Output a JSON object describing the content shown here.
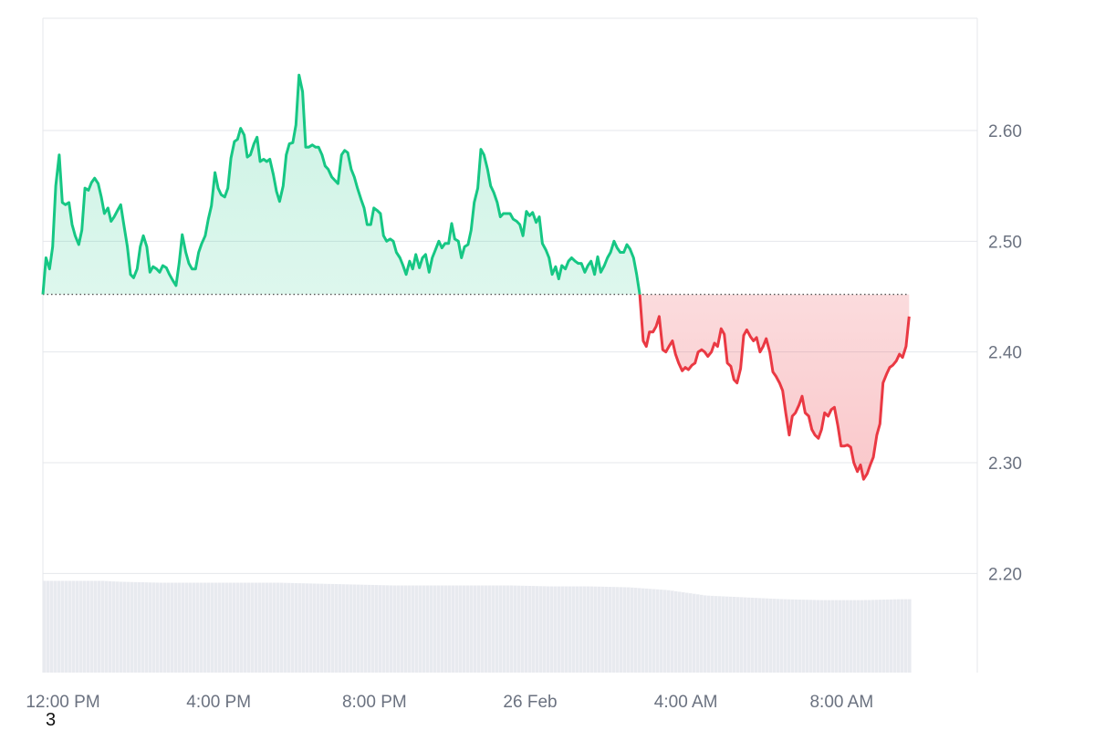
{
  "chart_data": {
    "type": "area",
    "y_axis_position": "right",
    "ylim": [
      2.1,
      2.7
    ],
    "yticks": [
      "2.60",
      "2.50",
      "2.40",
      "2.30",
      "2.20"
    ],
    "xticks": [
      "12:00 PM",
      "4:00 PM",
      "8:00 PM",
      "26 Feb",
      "4:00 AM",
      "8:00 AM"
    ],
    "x_range_hours": [
      0,
      24
    ],
    "xtick_hours": [
      0,
      4,
      8,
      12,
      16,
      20
    ],
    "baseline": 2.452,
    "grid": true,
    "colors": {
      "up": "#16c784",
      "down": "#ea3943",
      "grid": "#e5e7eb",
      "volume": "#e8eaef"
    },
    "series": [
      {
        "values": [
          [
            0.0,
            2.452
          ],
          [
            0.08,
            2.485
          ],
          [
            0.17,
            2.475
          ],
          [
            0.25,
            2.495
          ],
          [
            0.33,
            2.55
          ],
          [
            0.42,
            2.578
          ],
          [
            0.5,
            2.535
          ],
          [
            0.58,
            2.533
          ],
          [
            0.67,
            2.535
          ],
          [
            0.75,
            2.515
          ],
          [
            0.83,
            2.505
          ],
          [
            0.92,
            2.497
          ],
          [
            1.0,
            2.51
          ],
          [
            1.08,
            2.548
          ],
          [
            1.17,
            2.546
          ],
          [
            1.25,
            2.553
          ],
          [
            1.33,
            2.557
          ],
          [
            1.42,
            2.552
          ],
          [
            1.5,
            2.54
          ],
          [
            1.58,
            2.525
          ],
          [
            1.67,
            2.53
          ],
          [
            1.75,
            2.518
          ],
          [
            1.83,
            2.522
          ],
          [
            1.92,
            2.528
          ],
          [
            2.0,
            2.533
          ],
          [
            2.08,
            2.515
          ],
          [
            2.17,
            2.495
          ],
          [
            2.25,
            2.47
          ],
          [
            2.33,
            2.467
          ],
          [
            2.42,
            2.475
          ],
          [
            2.5,
            2.495
          ],
          [
            2.58,
            2.505
          ],
          [
            2.67,
            2.495
          ],
          [
            2.75,
            2.472
          ],
          [
            2.83,
            2.477
          ],
          [
            2.92,
            2.475
          ],
          [
            3.0,
            2.472
          ],
          [
            3.08,
            2.478
          ],
          [
            3.17,
            2.476
          ],
          [
            3.25,
            2.47
          ],
          [
            3.33,
            2.465
          ],
          [
            3.42,
            2.46
          ],
          [
            3.5,
            2.48
          ],
          [
            3.58,
            2.506
          ],
          [
            3.67,
            2.49
          ],
          [
            3.75,
            2.48
          ],
          [
            3.83,
            2.475
          ],
          [
            3.92,
            2.475
          ],
          [
            4.0,
            2.49
          ],
          [
            4.08,
            2.498
          ],
          [
            4.17,
            2.505
          ],
          [
            4.25,
            2.52
          ],
          [
            4.33,
            2.532
          ],
          [
            4.42,
            2.562
          ],
          [
            4.5,
            2.548
          ],
          [
            4.58,
            2.542
          ],
          [
            4.67,
            2.54
          ],
          [
            4.75,
            2.548
          ],
          [
            4.83,
            2.575
          ],
          [
            4.92,
            2.59
          ],
          [
            5.0,
            2.592
          ],
          [
            5.08,
            2.602
          ],
          [
            5.17,
            2.596
          ],
          [
            5.25,
            2.576
          ],
          [
            5.33,
            2.578
          ],
          [
            5.42,
            2.588
          ],
          [
            5.5,
            2.594
          ],
          [
            5.58,
            2.572
          ],
          [
            5.67,
            2.574
          ],
          [
            5.75,
            2.572
          ],
          [
            5.83,
            2.574
          ],
          [
            5.92,
            2.56
          ],
          [
            6.0,
            2.545
          ],
          [
            6.08,
            2.536
          ],
          [
            6.17,
            2.55
          ],
          [
            6.25,
            2.578
          ],
          [
            6.33,
            2.588
          ],
          [
            6.42,
            2.589
          ],
          [
            6.5,
            2.605
          ],
          [
            6.58,
            2.65
          ],
          [
            6.67,
            2.635
          ],
          [
            6.75,
            2.585
          ],
          [
            6.83,
            2.585
          ],
          [
            6.92,
            2.587
          ],
          [
            7.0,
            2.585
          ],
          [
            7.08,
            2.585
          ],
          [
            7.17,
            2.578
          ],
          [
            7.25,
            2.568
          ],
          [
            7.33,
            2.565
          ],
          [
            7.42,
            2.558
          ],
          [
            7.5,
            2.555
          ],
          [
            7.58,
            2.552
          ],
          [
            7.67,
            2.578
          ],
          [
            7.75,
            2.582
          ],
          [
            7.83,
            2.58
          ],
          [
            7.92,
            2.565
          ],
          [
            8.0,
            2.558
          ],
          [
            8.08,
            2.548
          ],
          [
            8.17,
            2.538
          ],
          [
            8.25,
            2.53
          ],
          [
            8.33,
            2.515
          ],
          [
            8.42,
            2.515
          ],
          [
            8.5,
            2.53
          ],
          [
            8.58,
            2.528
          ],
          [
            8.67,
            2.525
          ],
          [
            8.75,
            2.505
          ],
          [
            8.83,
            2.5
          ],
          [
            8.92,
            2.502
          ],
          [
            9.0,
            2.5
          ],
          [
            9.08,
            2.49
          ],
          [
            9.17,
            2.485
          ],
          [
            9.25,
            2.478
          ],
          [
            9.33,
            2.47
          ],
          [
            9.42,
            2.482
          ],
          [
            9.5,
            2.475
          ],
          [
            9.58,
            2.488
          ],
          [
            9.67,
            2.476
          ],
          [
            9.75,
            2.485
          ],
          [
            9.83,
            2.488
          ],
          [
            9.92,
            2.472
          ],
          [
            10.0,
            2.485
          ],
          [
            10.08,
            2.492
          ],
          [
            10.17,
            2.5
          ],
          [
            10.25,
            2.494
          ],
          [
            10.33,
            2.498
          ],
          [
            10.42,
            2.498
          ],
          [
            10.5,
            2.516
          ],
          [
            10.58,
            2.502
          ],
          [
            10.67,
            2.5
          ],
          [
            10.75,
            2.485
          ],
          [
            10.83,
            2.495
          ],
          [
            10.92,
            2.497
          ],
          [
            11.0,
            2.51
          ],
          [
            11.08,
            2.535
          ],
          [
            11.17,
            2.548
          ],
          [
            11.25,
            2.583
          ],
          [
            11.33,
            2.578
          ],
          [
            11.42,
            2.565
          ],
          [
            11.5,
            2.55
          ],
          [
            11.58,
            2.544
          ],
          [
            11.67,
            2.535
          ],
          [
            11.75,
            2.522
          ],
          [
            11.83,
            2.525
          ],
          [
            11.92,
            2.525
          ],
          [
            12.0,
            2.525
          ],
          [
            12.08,
            2.52
          ],
          [
            12.17,
            2.518
          ],
          [
            12.25,
            2.515
          ],
          [
            12.33,
            2.505
          ],
          [
            12.42,
            2.527
          ],
          [
            12.5,
            2.523
          ],
          [
            12.58,
            2.526
          ],
          [
            12.67,
            2.517
          ],
          [
            12.75,
            2.522
          ],
          [
            12.83,
            2.498
          ],
          [
            12.92,
            2.492
          ],
          [
            13.0,
            2.485
          ],
          [
            13.08,
            2.47
          ],
          [
            13.17,
            2.477
          ],
          [
            13.25,
            2.466
          ],
          [
            13.33,
            2.478
          ],
          [
            13.42,
            2.475
          ],
          [
            13.5,
            2.482
          ],
          [
            13.58,
            2.485
          ],
          [
            13.67,
            2.482
          ],
          [
            13.75,
            2.48
          ],
          [
            13.83,
            2.48
          ],
          [
            13.92,
            2.472
          ],
          [
            14.0,
            2.478
          ],
          [
            14.08,
            2.482
          ],
          [
            14.17,
            2.47
          ],
          [
            14.25,
            2.486
          ],
          [
            14.33,
            2.472
          ],
          [
            14.42,
            2.478
          ],
          [
            14.5,
            2.485
          ],
          [
            14.58,
            2.49
          ],
          [
            14.67,
            2.5
          ],
          [
            14.75,
            2.494
          ],
          [
            14.83,
            2.49
          ],
          [
            14.92,
            2.49
          ],
          [
            15.0,
            2.497
          ],
          [
            15.08,
            2.493
          ],
          [
            15.17,
            2.485
          ],
          [
            15.25,
            2.47
          ],
          [
            15.33,
            2.452
          ],
          [
            15.42,
            2.41
          ],
          [
            15.5,
            2.405
          ],
          [
            15.58,
            2.418
          ],
          [
            15.67,
            2.418
          ],
          [
            15.75,
            2.423
          ],
          [
            15.83,
            2.432
          ],
          [
            15.92,
            2.402
          ],
          [
            16.0,
            2.4
          ],
          [
            16.08,
            2.405
          ],
          [
            16.17,
            2.41
          ],
          [
            16.25,
            2.398
          ],
          [
            16.33,
            2.39
          ],
          [
            16.42,
            2.383
          ],
          [
            16.5,
            2.386
          ],
          [
            16.58,
            2.384
          ],
          [
            16.67,
            2.388
          ],
          [
            16.75,
            2.39
          ],
          [
            16.83,
            2.4
          ],
          [
            16.92,
            2.402
          ],
          [
            17.0,
            2.4
          ],
          [
            17.08,
            2.396
          ],
          [
            17.17,
            2.4
          ],
          [
            17.25,
            2.408
          ],
          [
            17.33,
            2.405
          ],
          [
            17.42,
            2.421
          ],
          [
            17.5,
            2.416
          ],
          [
            17.58,
            2.39
          ],
          [
            17.67,
            2.387
          ],
          [
            17.75,
            2.375
          ],
          [
            17.83,
            2.372
          ],
          [
            17.92,
            2.385
          ],
          [
            18.0,
            2.415
          ],
          [
            18.08,
            2.42
          ],
          [
            18.17,
            2.414
          ],
          [
            18.25,
            2.41
          ],
          [
            18.33,
            2.413
          ],
          [
            18.42,
            2.4
          ],
          [
            18.5,
            2.405
          ],
          [
            18.58,
            2.412
          ],
          [
            18.67,
            2.4
          ],
          [
            18.75,
            2.382
          ],
          [
            18.83,
            2.378
          ],
          [
            18.92,
            2.372
          ],
          [
            19.0,
            2.365
          ],
          [
            19.08,
            2.345
          ],
          [
            19.17,
            2.325
          ],
          [
            19.25,
            2.342
          ],
          [
            19.33,
            2.345
          ],
          [
            19.42,
            2.352
          ],
          [
            19.5,
            2.36
          ],
          [
            19.58,
            2.345
          ],
          [
            19.67,
            2.342
          ],
          [
            19.75,
            2.33
          ],
          [
            19.83,
            2.325
          ],
          [
            19.92,
            2.322
          ],
          [
            20.0,
            2.33
          ],
          [
            20.08,
            2.345
          ],
          [
            20.17,
            2.342
          ],
          [
            20.25,
            2.348
          ],
          [
            20.33,
            2.35
          ],
          [
            20.42,
            2.333
          ],
          [
            20.5,
            2.315
          ],
          [
            20.58,
            2.315
          ],
          [
            20.67,
            2.316
          ],
          [
            20.75,
            2.314
          ],
          [
            20.83,
            2.3
          ],
          [
            20.92,
            2.292
          ],
          [
            21.0,
            2.298
          ],
          [
            21.08,
            2.285
          ],
          [
            21.17,
            2.29
          ],
          [
            21.25,
            2.298
          ],
          [
            21.33,
            2.305
          ],
          [
            21.42,
            2.325
          ],
          [
            21.5,
            2.335
          ],
          [
            21.58,
            2.372
          ],
          [
            21.67,
            2.38
          ],
          [
            21.75,
            2.386
          ],
          [
            21.83,
            2.388
          ],
          [
            21.92,
            2.392
          ],
          [
            22.0,
            2.398
          ],
          [
            22.08,
            2.395
          ],
          [
            22.17,
            2.405
          ],
          [
            22.25,
            2.432
          ]
        ]
      }
    ],
    "volume": [
      [
        0.0,
        1.0
      ],
      [
        1.5,
        1.0
      ],
      [
        2.0,
        0.99
      ],
      [
        3.0,
        0.98
      ],
      [
        4.0,
        0.98
      ],
      [
        5.0,
        0.98
      ],
      [
        6.0,
        0.98
      ],
      [
        7.0,
        0.97
      ],
      [
        8.0,
        0.96
      ],
      [
        9.0,
        0.95
      ],
      [
        10.0,
        0.95
      ],
      [
        11.0,
        0.95
      ],
      [
        12.0,
        0.95
      ],
      [
        13.0,
        0.94
      ],
      [
        14.0,
        0.94
      ],
      [
        15.0,
        0.93
      ],
      [
        16.0,
        0.9
      ],
      [
        16.5,
        0.87
      ],
      [
        17.0,
        0.84
      ],
      [
        17.5,
        0.83
      ],
      [
        18.0,
        0.82
      ],
      [
        19.0,
        0.8
      ],
      [
        20.0,
        0.79
      ],
      [
        21.0,
        0.79
      ],
      [
        22.0,
        0.8
      ],
      [
        22.3,
        0.8
      ]
    ]
  },
  "footer": {
    "corner_label": "3"
  }
}
